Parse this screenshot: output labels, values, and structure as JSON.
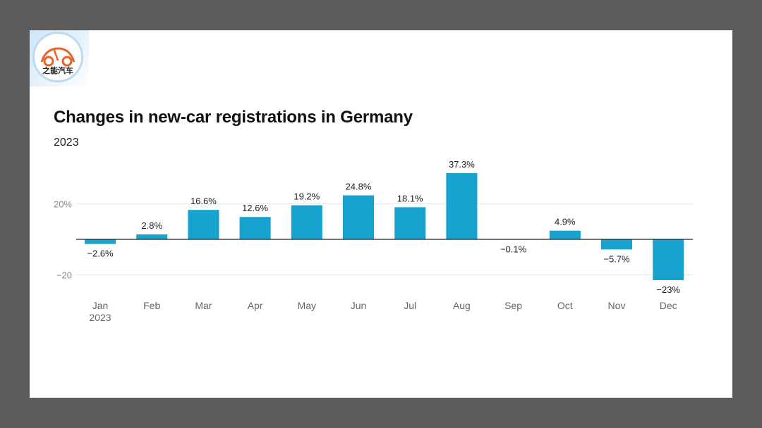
{
  "logo": {
    "text": "之能汽车",
    "icon": "car-logo-icon",
    "color": "#e8622c"
  },
  "chart_data": {
    "type": "bar",
    "title": "Changes in new-car registrations in Germany",
    "subtitle": "2023",
    "categories": [
      "Jan",
      "Feb",
      "Mar",
      "Apr",
      "May",
      "Jun",
      "Jul",
      "Aug",
      "Sep",
      "Oct",
      "Nov",
      "Dec"
    ],
    "first_category_year": "2023",
    "values": [
      -2.6,
      2.8,
      16.6,
      12.6,
      19.2,
      24.8,
      18.1,
      37.3,
      -0.1,
      4.9,
      -5.7,
      -23
    ],
    "value_labels": [
      "−2.6%",
      "2.8%",
      "16.6%",
      "12.6%",
      "19.2%",
      "24.8%",
      "18.1%",
      "37.3%",
      "−0.1%",
      "4.9%",
      "−5.7%",
      "−23%"
    ],
    "y_ticks": [
      {
        "value": 20,
        "label": "20%"
      },
      {
        "value": -20,
        "label": "−20"
      }
    ],
    "ylim": [
      -23,
      37.3
    ],
    "grid": true,
    "bar_color": "#17a2cf"
  }
}
